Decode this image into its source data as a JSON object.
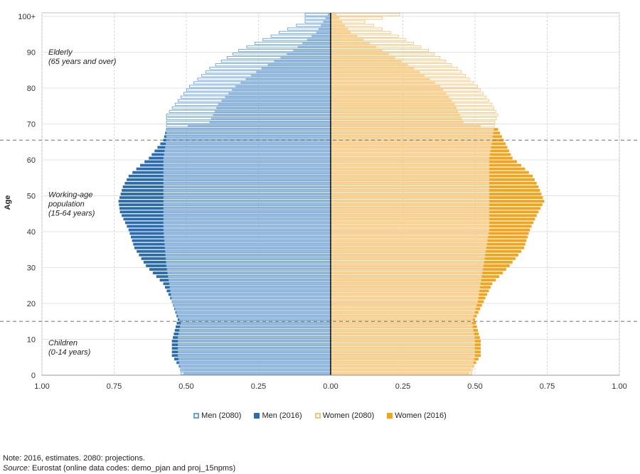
{
  "chart_data": {
    "type": "population-pyramid",
    "ylabel": "Age",
    "x_ticks": [
      "1.00",
      "0.75",
      "0.50",
      "0.25",
      "0.00",
      "0.25",
      "0.50",
      "0.75",
      "1.00"
    ],
    "y_ticks": [
      "0",
      "10",
      "20",
      "30",
      "40",
      "50",
      "60",
      "70",
      "80",
      "90",
      "100+"
    ],
    "xlim": [
      -1.0,
      1.0
    ],
    "ylim": [
      0,
      100
    ],
    "grid": true,
    "reference_lines": [
      14.5,
      65
    ],
    "annotations": [
      {
        "lines": [
          "Elderly",
          "(65 years and over)"
        ],
        "age": 87
      },
      {
        "lines": [
          "Working-age",
          "population",
          "(15-64 years)"
        ],
        "age": 46
      },
      {
        "lines": [
          "Children",
          "(0-14 years)"
        ],
        "age": 6
      }
    ],
    "series": [
      {
        "name": "Men (2080)",
        "side": "left",
        "style": "outline",
        "color": "#6aa3d8",
        "keyframes": [
          [
            0,
            0.52
          ],
          [
            5,
            0.53
          ],
          [
            10,
            0.53
          ],
          [
            14,
            0.52
          ],
          [
            20,
            0.55
          ],
          [
            30,
            0.57
          ],
          [
            40,
            0.58
          ],
          [
            50,
            0.58
          ],
          [
            60,
            0.58
          ],
          [
            65,
            0.57
          ],
          [
            70,
            0.57
          ],
          [
            72,
            0.57
          ],
          [
            75,
            0.54
          ],
          [
            80,
            0.49
          ],
          [
            85,
            0.42
          ],
          [
            90,
            0.32
          ],
          [
            95,
            0.18
          ],
          [
            98,
            0.09
          ],
          [
            100,
            0.09
          ]
        ]
      },
      {
        "name": "Men (2016)",
        "side": "left",
        "style": "filled",
        "color": "#2b6cb0",
        "keyframes": [
          [
            0,
            0.51
          ],
          [
            5,
            0.55
          ],
          [
            9,
            0.55
          ],
          [
            12,
            0.54
          ],
          [
            15,
            0.53
          ],
          [
            20,
            0.55
          ],
          [
            25,
            0.58
          ],
          [
            30,
            0.64
          ],
          [
            35,
            0.68
          ],
          [
            40,
            0.7
          ],
          [
            45,
            0.73
          ],
          [
            48,
            0.735
          ],
          [
            52,
            0.72
          ],
          [
            55,
            0.7
          ],
          [
            58,
            0.66
          ],
          [
            60,
            0.63
          ],
          [
            65,
            0.58
          ],
          [
            68,
            0.57
          ],
          [
            70,
            0.42
          ],
          [
            75,
            0.39
          ],
          [
            80,
            0.33
          ],
          [
            85,
            0.24
          ],
          [
            90,
            0.13
          ],
          [
            95,
            0.05
          ],
          [
            100,
            0.01
          ]
        ]
      },
      {
        "name": "Women (2080)",
        "side": "right",
        "style": "outline",
        "color": "#f4c57c",
        "keyframes": [
          [
            0,
            0.49
          ],
          [
            5,
            0.5
          ],
          [
            10,
            0.5
          ],
          [
            14,
            0.49
          ],
          [
            20,
            0.51
          ],
          [
            30,
            0.53
          ],
          [
            40,
            0.55
          ],
          [
            50,
            0.55
          ],
          [
            60,
            0.55
          ],
          [
            65,
            0.56
          ],
          [
            70,
            0.57
          ],
          [
            72,
            0.58
          ],
          [
            75,
            0.56
          ],
          [
            80,
            0.51
          ],
          [
            85,
            0.44
          ],
          [
            90,
            0.34
          ],
          [
            95,
            0.21
          ],
          [
            98,
            0.12
          ],
          [
            100,
            0.24
          ]
        ]
      },
      {
        "name": "Women (2016)",
        "side": "right",
        "style": "filled",
        "color": "#f5a31a",
        "keyframes": [
          [
            0,
            0.48
          ],
          [
            5,
            0.52
          ],
          [
            9,
            0.52
          ],
          [
            12,
            0.51
          ],
          [
            15,
            0.5
          ],
          [
            20,
            0.53
          ],
          [
            25,
            0.56
          ],
          [
            30,
            0.62
          ],
          [
            35,
            0.67
          ],
          [
            40,
            0.69
          ],
          [
            45,
            0.72
          ],
          [
            48,
            0.74
          ],
          [
            52,
            0.72
          ],
          [
            55,
            0.7
          ],
          [
            58,
            0.66
          ],
          [
            60,
            0.63
          ],
          [
            65,
            0.6
          ],
          [
            68,
            0.58
          ],
          [
            70,
            0.46
          ],
          [
            75,
            0.43
          ],
          [
            80,
            0.38
          ],
          [
            85,
            0.29
          ],
          [
            90,
            0.18
          ],
          [
            95,
            0.07
          ],
          [
            100,
            0.02
          ]
        ]
      }
    ]
  },
  "legend": [
    {
      "label": "Men (2080)",
      "color": "#6aa3d8",
      "style": "outline"
    },
    {
      "label": "Men (2016)",
      "color": "#2b6cb0",
      "style": "filled"
    },
    {
      "label": "Women (2080)",
      "color": "#f4c57c",
      "style": "outline"
    },
    {
      "label": "Women (2016)",
      "color": "#f5a31a",
      "style": "filled"
    }
  ],
  "notes": {
    "note": "Note: 2016, estimates. 2080: projections.",
    "source_label": "Source:",
    "source_text": " Eurostat (online data codes: demo_pjan and proj_15npms)"
  }
}
